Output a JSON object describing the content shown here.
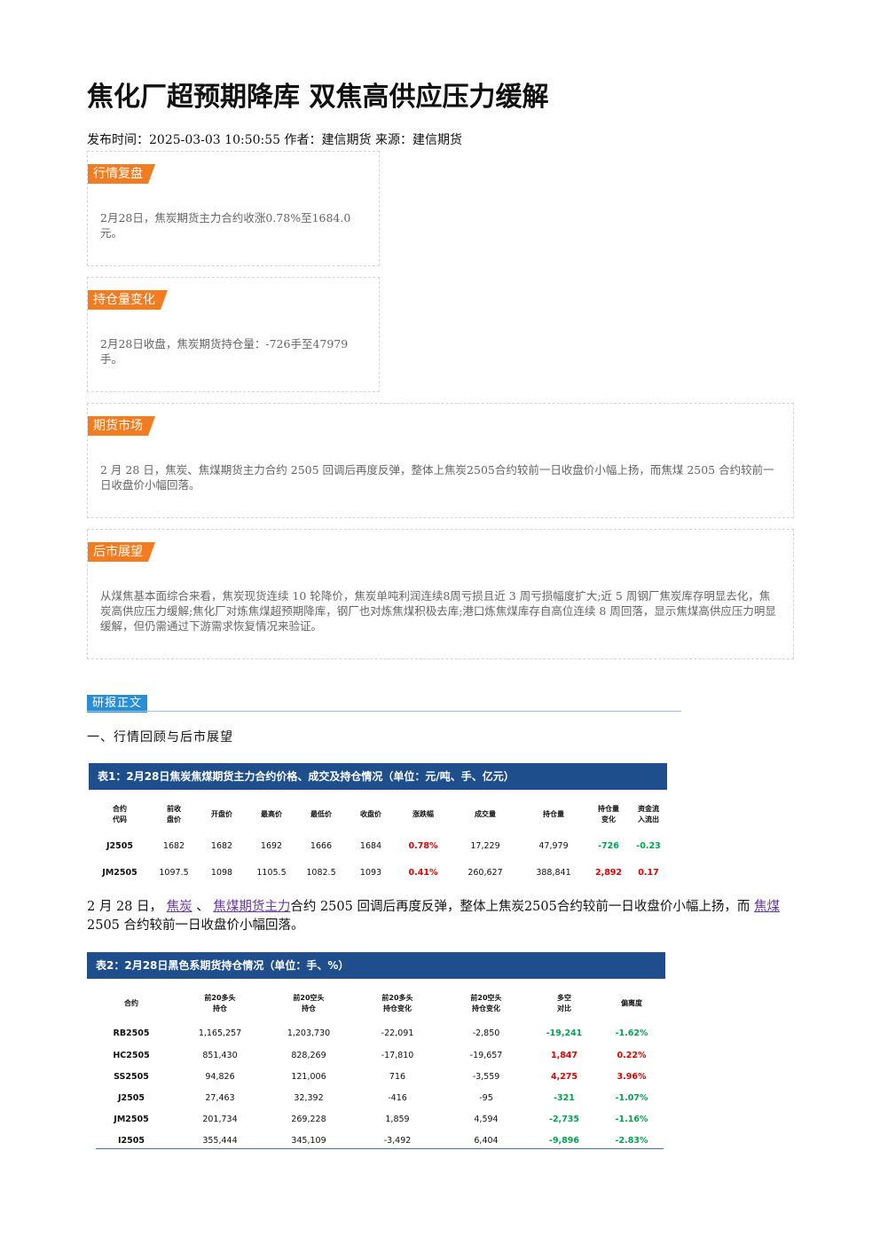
{
  "article": {
    "title": "焦化厂超预期降库 双焦高供应压力缓解",
    "meta": "发布时间：2025-03-03 10:50:55 作者：建信期货 来源：建信期货"
  },
  "cards": [
    {
      "tag": "行情复盘",
      "text": "2月28日，焦炭期货主力合约收涨0.78%至1684.0元。"
    },
    {
      "tag": "持仓量变化",
      "text": "2月28日收盘，焦炭期货持仓量：-726手至47979手。"
    },
    {
      "tag": "期货市场",
      "text": "2 月 28 日，焦炭、焦煤期货主力合约 2505 回调后再度反弹，整体上焦炭2505合约较前一日收盘价小幅上扬，而焦煤 2505 合约较前一日收盘价小幅回落。"
    },
    {
      "tag": "后市展望",
      "text": "从煤焦基本面综合来看，焦炭现货连续 10 轮降价，焦炭单吨利润连续8周亏损且近 3 周亏损幅度扩大;近 5 周钢厂焦炭库存明显去化，焦炭高供应压力缓解;焦化厂对炼焦煤超预期降库，钢厂也对炼焦煤积极去库;港口炼焦煤库存自高位连续 8 周回落，显示焦煤高供应压力明显缓解，但仍需通过下游需求恢复情况来验证。"
    }
  ],
  "report": {
    "section_tag": "研报正文",
    "heading": "一、行情回顾与后市展望",
    "para_1": "2 月 28 日，",
    "link_1": "焦炭",
    "sep": "、",
    "link_2": "焦煤期货主力",
    "para_2": "合约 2505 回调后再度反弹，整体上焦炭2505合约较前一日收盘价小幅上扬，而",
    "link_3": "焦煤",
    "para_3": "2505 合约较前一日收盘价小幅回落。"
  },
  "table1": {
    "title": "表1：2月28日焦炭焦煤期货主力合约价格、成交及持仓情况（单位：元/吨、手、亿元）",
    "headers": [
      "合约\n代码",
      "前收\n盘价",
      "开盘价",
      "最高价",
      "最低价",
      "收盘价",
      "涨跌幅",
      "成交量",
      "持仓量",
      "持仓量\n变化",
      "资金流\n入流出"
    ],
    "rows": [
      [
        "J2505",
        "1682",
        "1682",
        "1692",
        "1666",
        "1684",
        "0.78%",
        "17,229",
        "47,979",
        "-726",
        "-0.23"
      ],
      [
        "JM2505",
        "1097.5",
        "1098",
        "1105.5",
        "1082.5",
        "1093",
        "0.41%",
        "260,627",
        "388,841",
        "2,892",
        "0.17"
      ]
    ],
    "colors": [
      [
        "",
        "",
        "",
        "",
        "",
        "",
        "red",
        "",
        "",
        "green",
        "green"
      ],
      [
        "",
        "",
        "",
        "",
        "",
        "",
        "red",
        "",
        "",
        "red",
        "red"
      ]
    ]
  },
  "table2": {
    "title": "表2：2月28日黑色系期货持仓情况（单位：手、%）",
    "headers": [
      "合约",
      "前20多头\n持仓",
      "前20空头\n持仓",
      "前20多头\n持仓变化",
      "前20空头\n持仓变化",
      "多空\n对比",
      "偏离度"
    ],
    "rows": [
      [
        "RB2505",
        "1,165,257",
        "1,203,730",
        "-22,091",
        "-2,850",
        "-19,241",
        "-1.62%"
      ],
      [
        "HC2505",
        "851,430",
        "828,269",
        "-17,810",
        "-19,657",
        "1,847",
        "0.22%"
      ],
      [
        "SS2505",
        "94,826",
        "121,006",
        "716",
        "-3,559",
        "4,275",
        "3.96%"
      ],
      [
        "J2505",
        "27,463",
        "32,392",
        "-416",
        "-95",
        "-321",
        "-1.07%"
      ],
      [
        "JM2505",
        "201,734",
        "269,228",
        "1,859",
        "4,594",
        "-2,735",
        "-1.16%"
      ],
      [
        "I2505",
        "355,444",
        "345,109",
        "-3,492",
        "6,404",
        "-9,896",
        "-2.83%"
      ]
    ],
    "colors": [
      [
        "",
        "",
        "",
        "",
        "",
        "green",
        "green"
      ],
      [
        "",
        "",
        "",
        "",
        "",
        "red",
        "red"
      ],
      [
        "",
        "",
        "",
        "",
        "",
        "red",
        "red"
      ],
      [
        "",
        "",
        "",
        "",
        "",
        "green",
        "green"
      ],
      [
        "",
        "",
        "",
        "",
        "",
        "green",
        "green"
      ],
      [
        "",
        "",
        "",
        "",
        "",
        "green",
        "green"
      ]
    ]
  }
}
